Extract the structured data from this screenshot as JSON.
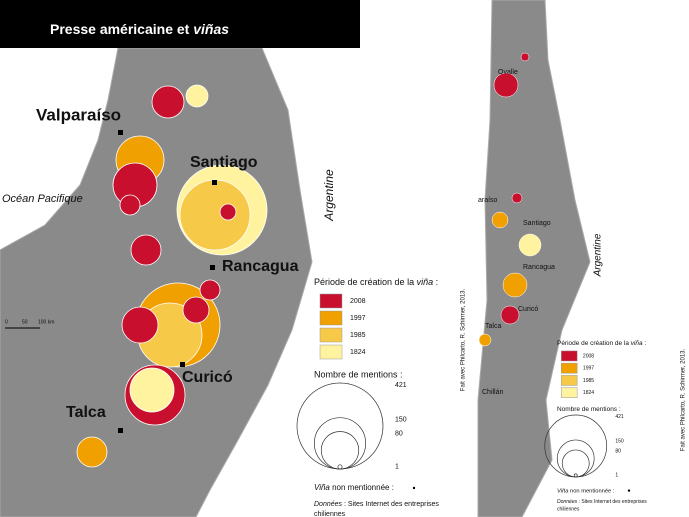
{
  "title": {
    "text": "Presse américaine et ",
    "italic": "viñas"
  },
  "left_map": {
    "places": [
      "Valparaíso",
      "Santiago",
      "Rancagua",
      "Curicó",
      "Talca"
    ],
    "ocean": "Océan Pacifique",
    "country": "Argentine",
    "scale": [
      "0",
      "50",
      "100 km"
    ]
  },
  "right_map": {
    "places": [
      "Ovalle",
      "araíso",
      "Santiago",
      "Rancagua",
      "Curicó",
      "Talca",
      "Chillán"
    ],
    "country": "Argentine",
    "credit": "Fait avec Philcarto, R. Schirmer, 2013."
  },
  "legend": {
    "period_title": "Période de création de la ",
    "period_title_italic": "viña",
    "period_title_end": " :",
    "periods": [
      {
        "label": "2008",
        "color": "#c8102e"
      },
      {
        "label": "1997",
        "color": "#f0a000"
      },
      {
        "label": "1985",
        "color": "#f7c948"
      },
      {
        "label": "1824",
        "color": "#fff3a0"
      }
    ],
    "mentions_title": "Nombre de mentions :",
    "sizes": [
      421,
      150,
      80,
      1
    ],
    "none_italic": "Viña",
    "none_text": " non mentionnée :",
    "source_italic": "Données",
    "source_text": " : Sites Internet des entreprises",
    "source_text2": "chiliennes"
  }
}
